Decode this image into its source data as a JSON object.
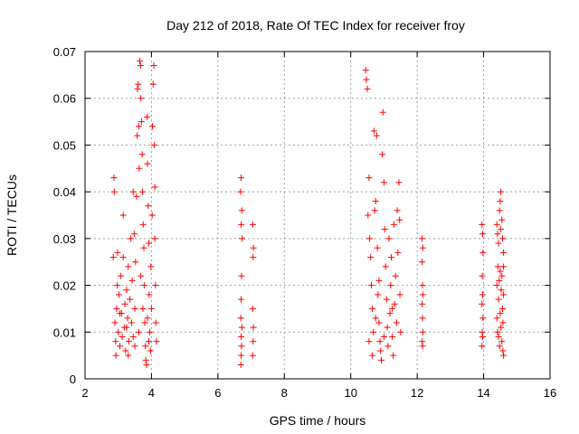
{
  "chart_data": {
    "type": "scatter",
    "title": "Day 212 of 2018, Rate Of TEC Index for receiver froy",
    "xlabel": "GPS time / hours",
    "ylabel": "ROTI / TECUs",
    "xlim": [
      2,
      16
    ],
    "ylim": [
      0,
      0.07
    ],
    "xticks": [
      2,
      4,
      6,
      8,
      10,
      12,
      14,
      16
    ],
    "xtick_labels": [
      "2",
      "4",
      "6",
      "8",
      "10",
      "12",
      "14",
      "16"
    ],
    "yticks": [
      0,
      0.01,
      0.02,
      0.03,
      0.04,
      0.05,
      0.06,
      0.07
    ],
    "ytick_labels": [
      "0",
      "0.01",
      "0.02",
      "0.03",
      "0.04",
      "0.05",
      "0.06",
      "0.07"
    ],
    "grid": true,
    "marker": "+",
    "marker_color": "#ff0000",
    "series": [
      {
        "name": "ROTI",
        "points": [
          [
            2.85,
            0.026
          ],
          [
            2.87,
            0.043
          ],
          [
            2.88,
            0.04
          ],
          [
            2.9,
            0.012
          ],
          [
            2.92,
            0.008
          ],
          [
            2.93,
            0.005
          ],
          [
            2.95,
            0.015
          ],
          [
            2.97,
            0.02
          ],
          [
            2.98,
            0.027
          ],
          [
            3.0,
            0.01
          ],
          [
            3.02,
            0.018
          ],
          [
            3.05,
            0.007
          ],
          [
            3.08,
            0.022
          ],
          [
            3.1,
            0.014
          ],
          [
            3.12,
            0.009
          ],
          [
            3.15,
            0.026
          ],
          [
            3.18,
            0.011
          ],
          [
            3.2,
            0.016
          ],
          [
            3.22,
            0.006
          ],
          [
            3.25,
            0.019
          ],
          [
            3.28,
            0.013
          ],
          [
            3.3,
            0.024
          ],
          [
            3.32,
            0.008
          ],
          [
            3.35,
            0.017
          ],
          [
            3.38,
            0.03
          ],
          [
            3.4,
            0.012
          ],
          [
            3.42,
            0.021
          ],
          [
            3.45,
            0.009
          ],
          [
            3.48,
            0.031
          ],
          [
            3.5,
            0.015
          ],
          [
            3.52,
            0.025
          ],
          [
            3.55,
            0.039
          ],
          [
            3.57,
            0.052
          ],
          [
            3.58,
            0.062
          ],
          [
            3.6,
            0.063
          ],
          [
            3.62,
            0.054
          ],
          [
            3.63,
            0.045
          ],
          [
            3.65,
            0.068
          ],
          [
            3.67,
            0.067
          ],
          [
            3.68,
            0.06
          ],
          [
            3.7,
            0.055
          ],
          [
            3.72,
            0.048
          ],
          [
            3.73,
            0.04
          ],
          [
            3.75,
            0.033
          ],
          [
            3.77,
            0.028
          ],
          [
            3.78,
            0.02
          ],
          [
            3.8,
            0.012
          ],
          [
            3.82,
            0.007
          ],
          [
            3.83,
            0.004
          ],
          [
            3.85,
            0.003
          ],
          [
            3.87,
            0.056
          ],
          [
            3.88,
            0.046
          ],
          [
            3.9,
            0.037
          ],
          [
            3.92,
            0.029
          ],
          [
            3.93,
            0.018
          ],
          [
            3.95,
            0.01
          ],
          [
            3.97,
            0.006
          ],
          [
            3.98,
            0.024
          ],
          [
            4.0,
            0.015
          ],
          [
            4.02,
            0.035
          ],
          [
            4.03,
            0.054
          ],
          [
            4.05,
            0.063
          ],
          [
            4.07,
            0.067
          ],
          [
            4.08,
            0.05
          ],
          [
            4.1,
            0.041
          ],
          [
            4.12,
            0.02
          ],
          [
            4.13,
            0.012
          ],
          [
            4.15,
            0.008
          ],
          [
            3.45,
            0.04
          ],
          [
            3.3,
            0.005
          ],
          [
            3.15,
            0.035
          ],
          [
            3.62,
            0.01
          ],
          [
            3.74,
            0.015
          ],
          [
            3.92,
            0.008
          ],
          [
            4.1,
            0.03
          ],
          [
            3.05,
            0.014
          ],
          [
            3.25,
            0.011
          ],
          [
            3.5,
            0.007
          ],
          [
            3.68,
            0.022
          ],
          [
            3.88,
            0.013
          ],
          [
            6.7,
            0.043
          ],
          [
            6.68,
            0.04
          ],
          [
            6.72,
            0.036
          ],
          [
            6.7,
            0.033
          ],
          [
            6.73,
            0.03
          ],
          [
            6.71,
            0.022
          ],
          [
            6.7,
            0.017
          ],
          [
            6.69,
            0.013
          ],
          [
            6.72,
            0.011
          ],
          [
            6.7,
            0.009
          ],
          [
            6.71,
            0.007
          ],
          [
            6.7,
            0.005
          ],
          [
            6.69,
            0.003
          ],
          [
            7.05,
            0.033
          ],
          [
            7.07,
            0.028
          ],
          [
            7.06,
            0.026
          ],
          [
            7.05,
            0.015
          ],
          [
            7.07,
            0.011
          ],
          [
            7.06,
            0.008
          ],
          [
            7.05,
            0.005
          ],
          [
            10.45,
            0.066
          ],
          [
            10.47,
            0.064
          ],
          [
            10.5,
            0.062
          ],
          [
            10.52,
            0.035
          ],
          [
            10.55,
            0.043
          ],
          [
            10.57,
            0.03
          ],
          [
            10.6,
            0.026
          ],
          [
            10.62,
            0.02
          ],
          [
            10.65,
            0.015
          ],
          [
            10.68,
            0.01
          ],
          [
            10.7,
            0.053
          ],
          [
            10.72,
            0.036
          ],
          [
            10.75,
            0.038
          ],
          [
            10.78,
            0.052
          ],
          [
            10.8,
            0.028
          ],
          [
            10.82,
            0.018
          ],
          [
            10.85,
            0.012
          ],
          [
            10.88,
            0.008
          ],
          [
            10.9,
            0.006
          ],
          [
            10.92,
            0.004
          ],
          [
            10.95,
            0.048
          ],
          [
            10.97,
            0.057
          ],
          [
            11.0,
            0.042
          ],
          [
            11.02,
            0.032
          ],
          [
            11.05,
            0.024
          ],
          [
            11.08,
            0.017
          ],
          [
            11.1,
            0.011
          ],
          [
            11.12,
            0.007
          ],
          [
            11.15,
            0.03
          ],
          [
            11.18,
            0.014
          ],
          [
            11.2,
            0.02
          ],
          [
            11.22,
            0.026
          ],
          [
            11.25,
            0.009
          ],
          [
            11.28,
            0.005
          ],
          [
            11.3,
            0.033
          ],
          [
            11.32,
            0.016
          ],
          [
            11.35,
            0.022
          ],
          [
            11.38,
            0.012
          ],
          [
            11.4,
            0.036
          ],
          [
            11.42,
            0.027
          ],
          [
            11.45,
            0.042
          ],
          [
            11.47,
            0.034
          ],
          [
            11.48,
            0.018
          ],
          [
            11.5,
            0.01
          ],
          [
            10.55,
            0.008
          ],
          [
            10.65,
            0.005
          ],
          [
            10.75,
            0.013
          ],
          [
            10.85,
            0.021
          ],
          [
            11.0,
            0.009
          ],
          [
            11.25,
            0.015
          ],
          [
            12.15,
            0.03
          ],
          [
            12.17,
            0.028
          ],
          [
            12.15,
            0.025
          ],
          [
            12.16,
            0.02
          ],
          [
            12.17,
            0.018
          ],
          [
            12.15,
            0.016
          ],
          [
            12.16,
            0.013
          ],
          [
            12.17,
            0.01
          ],
          [
            12.15,
            0.008
          ],
          [
            12.16,
            0.007
          ],
          [
            13.95,
            0.033
          ],
          [
            13.97,
            0.031
          ],
          [
            13.98,
            0.027
          ],
          [
            13.96,
            0.022
          ],
          [
            13.97,
            0.018
          ],
          [
            13.95,
            0.016
          ],
          [
            13.98,
            0.013
          ],
          [
            13.96,
            0.01
          ],
          [
            13.97,
            0.009
          ],
          [
            13.95,
            0.007
          ],
          [
            14.4,
            0.033
          ],
          [
            14.42,
            0.031
          ],
          [
            14.45,
            0.029
          ],
          [
            14.48,
            0.036
          ],
          [
            14.5,
            0.038
          ],
          [
            14.52,
            0.04
          ],
          [
            14.55,
            0.034
          ],
          [
            14.57,
            0.03
          ],
          [
            14.6,
            0.024
          ],
          [
            14.4,
            0.02
          ],
          [
            14.45,
            0.017
          ],
          [
            14.5,
            0.014
          ],
          [
            14.52,
            0.011
          ],
          [
            14.55,
            0.008
          ],
          [
            14.58,
            0.006
          ],
          [
            14.6,
            0.005
          ],
          [
            14.43,
            0.024
          ],
          [
            14.47,
            0.021
          ],
          [
            14.53,
            0.019
          ],
          [
            14.57,
            0.015
          ],
          [
            14.42,
            0.01
          ],
          [
            14.48,
            0.007
          ],
          [
            14.58,
            0.012
          ],
          [
            14.6,
            0.027
          ],
          [
            14.5,
            0.023
          ],
          [
            14.45,
            0.009
          ],
          [
            14.55,
            0.022
          ],
          [
            14.4,
            0.013
          ],
          [
            14.6,
            0.018
          ],
          [
            14.52,
            0.032
          ]
        ]
      }
    ]
  }
}
